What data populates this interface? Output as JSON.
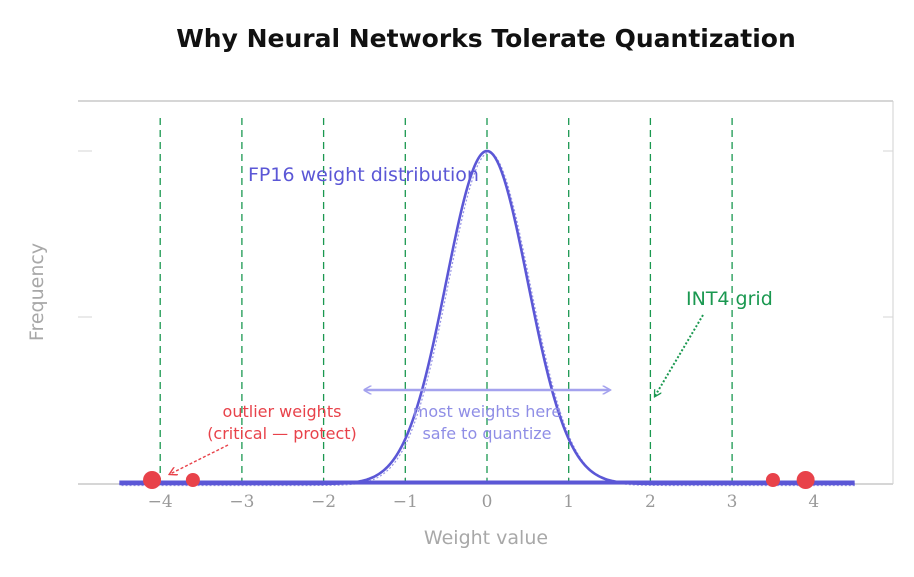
{
  "chart_data": {
    "type": "line",
    "title": "Why Neural Networks Tolerate Quantization",
    "xlabel": "Weight value",
    "ylabel": "Frequency",
    "xlim": [
      -5,
      5
    ],
    "ylim": [
      0,
      1.15
    ],
    "x_ticks": [
      -4,
      -3,
      -2,
      -1,
      0,
      1,
      2,
      3,
      4
    ],
    "x_tick_labels": [
      "−4",
      "−3",
      "−2",
      "−1",
      "0",
      "1",
      "2",
      "3",
      "4"
    ],
    "grid": false,
    "series": [
      {
        "name": "FP16 weight distribution",
        "kind": "gaussian_curve",
        "mean": 0,
        "std": 0.5,
        "peak": 1.0,
        "x_range": [
          -4.5,
          4.5
        ],
        "color": "#5b57d6"
      }
    ],
    "quantization_grid": {
      "label": "INT4 grid",
      "x": [
        -4,
        -3,
        -2,
        -1,
        0,
        1,
        2,
        3
      ],
      "color": "#1a9850"
    },
    "outliers": {
      "label": "outlier weights\n(critical — protect)",
      "x": [
        -4.1,
        -3.6,
        3.5,
        3.9
      ],
      "y": [
        0,
        0,
        0,
        0
      ],
      "color": "#e8424a"
    },
    "annotations": [
      {
        "text": "FP16 weight distribution",
        "x": -3,
        "y": 0.93,
        "color": "#5b57d6"
      },
      {
        "text": "INT4 grid",
        "x": 2.4,
        "y": 0.55,
        "color": "#1a9850",
        "arrow_to": [
          2.05,
          0.25
        ]
      },
      {
        "text": "outlier weights\n(critical — protect)",
        "x": -2.5,
        "y": 0.2,
        "color": "#e8424a",
        "arrow_to": [
          -3.95,
          0.02
        ]
      },
      {
        "text": "most weights here\nsafe to quantize",
        "x": 0,
        "y": 0.2,
        "color": "#8f8ee6",
        "span": [
          -1.5,
          1.5
        ],
        "span_y": 0.28
      }
    ]
  }
}
